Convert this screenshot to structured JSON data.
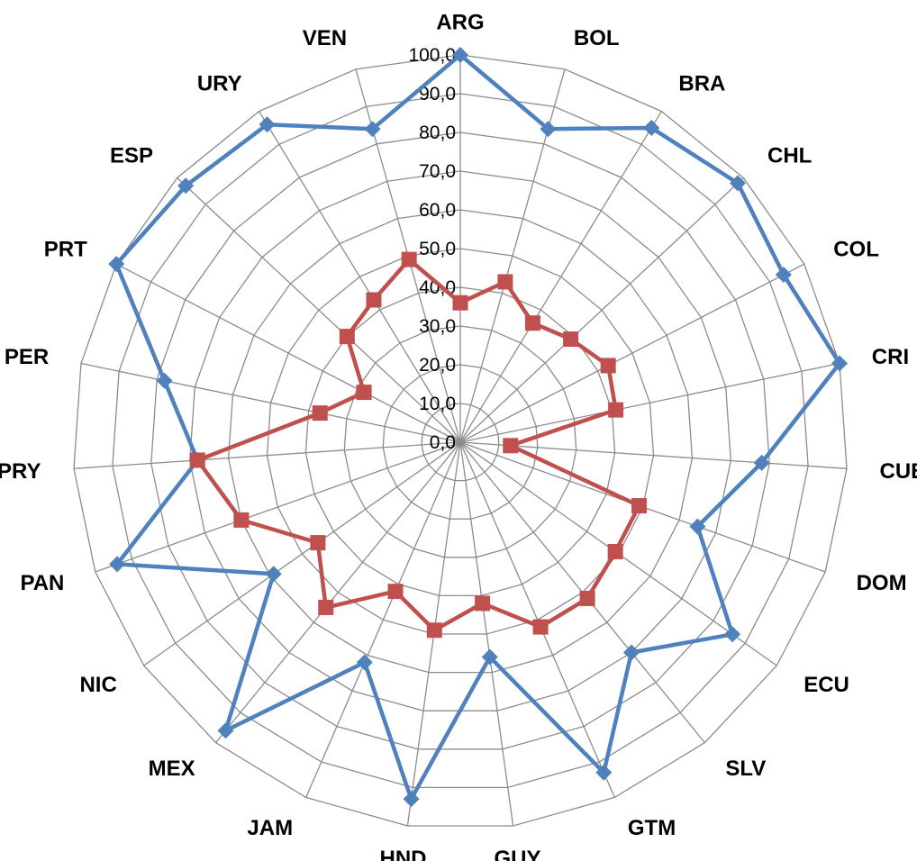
{
  "chart_data": {
    "type": "radar",
    "title": "",
    "categories": [
      "ARG",
      "BOL",
      "BRA",
      "CHL",
      "COL",
      "CRI",
      "CUB",
      "DOM",
      "ECU",
      "SLV",
      "GTM",
      "GUY",
      "HND",
      "JAM",
      "MEX",
      "NIC",
      "PAN",
      "PRY",
      "PER",
      "PRT",
      "ESP",
      "URY",
      "VEN"
    ],
    "rlim": [
      0,
      100
    ],
    "ticks": [
      "0,0",
      "10,0",
      "20,0",
      "30,0",
      "40,0",
      "50,0",
      "60,0",
      "70,0",
      "80,0",
      "90,0",
      "100,0"
    ],
    "grid": true,
    "legend": "none",
    "series": [
      {
        "color": "#4f81bd",
        "marker": "diamond",
        "values": [
          100,
          84,
          95,
          98,
          94,
          100,
          78,
          65,
          86,
          70,
          93,
          56,
          93,
          62,
          96,
          59,
          94,
          68,
          78,
          100,
          97,
          96,
          84
        ]
      },
      {
        "color": "#c0504d",
        "marker": "square",
        "values": [
          36,
          43,
          36,
          39,
          43,
          41,
          13,
          49,
          49,
          52,
          52,
          42,
          49,
          42,
          55,
          45,
          60,
          68,
          37,
          28,
          40,
          43,
          49
        ]
      }
    ]
  }
}
